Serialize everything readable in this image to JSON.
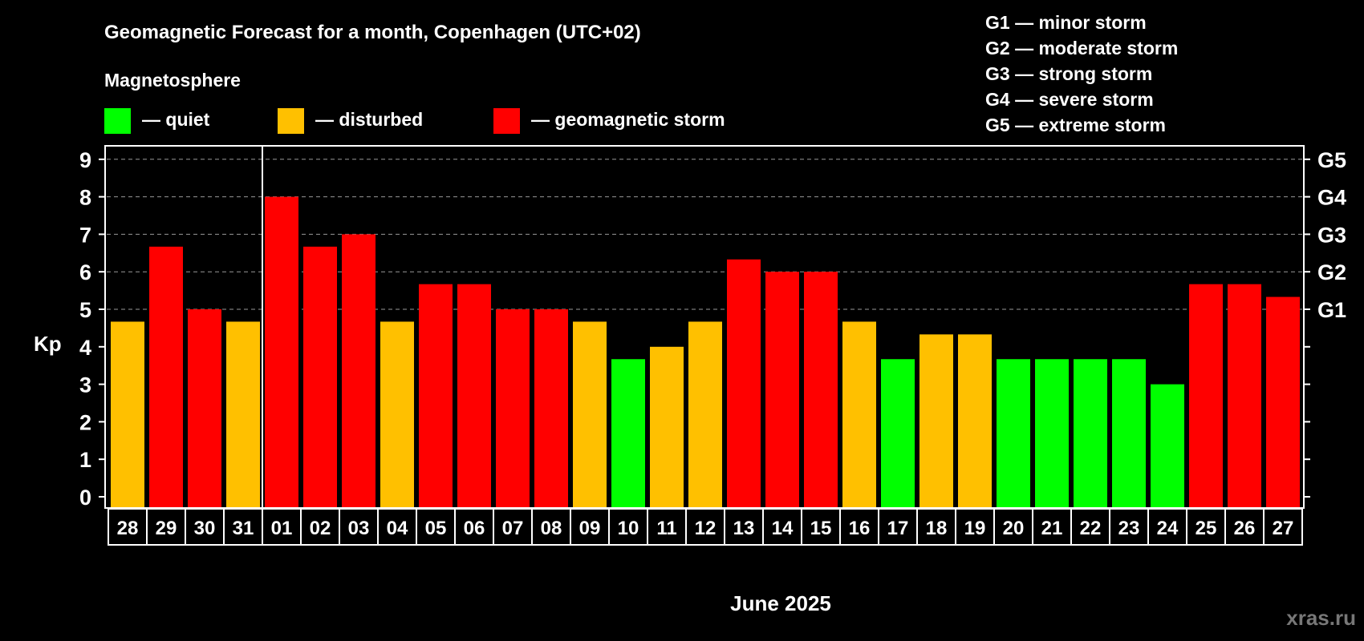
{
  "chart_data": {
    "type": "bar",
    "title": "Geomagnetic Forecast for a month, Copenhagen (UTC+02)",
    "legend_title": "Magnetosphere",
    "legend": [
      {
        "key": "quiet",
        "label": "— quiet",
        "color": "#00FF00"
      },
      {
        "key": "disturbed",
        "label": "— disturbed",
        "color": "#FFC000"
      },
      {
        "key": "storm",
        "label": "— geomagnetic storm",
        "color": "#FF0000"
      }
    ],
    "storm_scale": [
      {
        "g": "G1",
        "text": "G1 — minor storm",
        "kp": 5
      },
      {
        "g": "G2",
        "text": "G2 — moderate storm",
        "kp": 6
      },
      {
        "g": "G3",
        "text": "G3 — strong storm",
        "kp": 7
      },
      {
        "g": "G4",
        "text": "G4 — severe storm",
        "kp": 8
      },
      {
        "g": "G5",
        "text": "G5 — extreme storm",
        "kp": 9
      }
    ],
    "ylabel": "Kp",
    "xlabel": "June 2025",
    "ylim": [
      0,
      9
    ],
    "yticks": [
      "0",
      "1",
      "2",
      "3",
      "4",
      "5",
      "6",
      "7",
      "8",
      "9"
    ],
    "grid": "dashed at Kp 5-9",
    "month_divider_before": "01",
    "categories": [
      "28",
      "29",
      "30",
      "31",
      "01",
      "02",
      "03",
      "04",
      "05",
      "06",
      "07",
      "08",
      "09",
      "10",
      "11",
      "12",
      "13",
      "14",
      "15",
      "16",
      "17",
      "18",
      "19",
      "20",
      "21",
      "22",
      "23",
      "24",
      "25",
      "26",
      "27"
    ],
    "values": [
      4.67,
      6.67,
      5,
      4.67,
      8,
      6.67,
      7,
      4.67,
      5.67,
      5.67,
      5,
      5,
      4.67,
      3.67,
      4,
      4.67,
      6.33,
      6,
      6,
      4.67,
      3.67,
      4.33,
      4.33,
      3.67,
      3.67,
      3.67,
      3.67,
      3,
      5.67,
      5.67,
      5.33
    ],
    "levels": [
      "disturbed",
      "storm",
      "storm",
      "disturbed",
      "storm",
      "storm",
      "storm",
      "disturbed",
      "storm",
      "storm",
      "storm",
      "storm",
      "disturbed",
      "quiet",
      "disturbed",
      "disturbed",
      "storm",
      "storm",
      "storm",
      "disturbed",
      "quiet",
      "disturbed",
      "disturbed",
      "quiet",
      "quiet",
      "quiet",
      "quiet",
      "quiet",
      "storm",
      "storm",
      "storm"
    ]
  },
  "watermark": "xras.ru"
}
